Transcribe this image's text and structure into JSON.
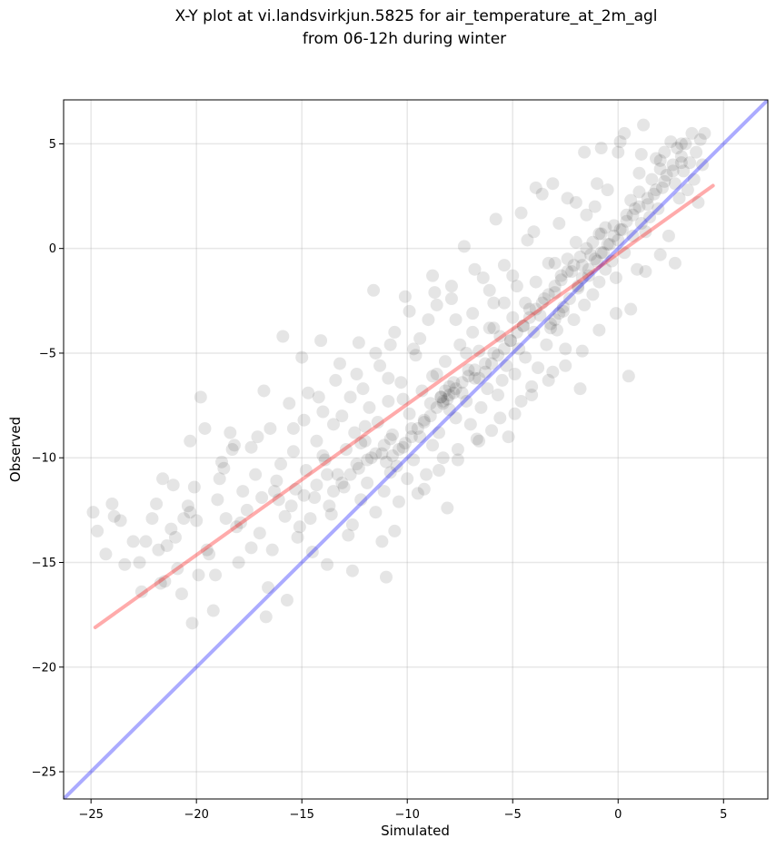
{
  "chart_data": {
    "type": "scatter",
    "title": "X-Y plot at vi.landsvirkjun.5825 for air_temperature_at_2m_agl",
    "subtitle": "from 06-12h during winter",
    "xlabel": "Simulated",
    "ylabel": "Observed",
    "xlim": [
      -26.3,
      7.1
    ],
    "ylim": [
      -26.3,
      7.1
    ],
    "xticks": [
      -25,
      -20,
      -15,
      -10,
      -5,
      0,
      5
    ],
    "yticks": [
      -25,
      -20,
      -15,
      -10,
      -5,
      0,
      5
    ],
    "xtick_labels": [
      "−25",
      "−20",
      "−15",
      "−10",
      "−5",
      "0",
      "5"
    ],
    "ytick_labels": [
      "−25",
      "−20",
      "−15",
      "−10",
      "−5",
      "0",
      "5"
    ],
    "grid": true,
    "point_color": "#000000",
    "point_alpha": 0.1,
    "regression_line": {
      "color": "#ff0000",
      "alpha": 0.33,
      "x": [
        -24.8,
        4.5
      ],
      "y": [
        -18.1,
        3.0
      ]
    },
    "identity_line": {
      "color": "#0000ff",
      "alpha": 0.33,
      "x": [
        -26.3,
        7.1
      ],
      "y": [
        -26.3,
        7.1
      ]
    },
    "points": [
      [
        -24.9,
        -12.6
      ],
      [
        -24.7,
        -13.5
      ],
      [
        -24.3,
        -14.6
      ],
      [
        -24.0,
        -12.2
      ],
      [
        -23.9,
        -12.8
      ],
      [
        -23.6,
        -13.0
      ],
      [
        -23.4,
        -15.1
      ],
      [
        -23.0,
        -14.0
      ],
      [
        -22.7,
        -15.0
      ],
      [
        -22.4,
        -14.0
      ],
      [
        -22.1,
        -12.9
      ],
      [
        -21.9,
        -12.2
      ],
      [
        -21.8,
        -14.4
      ],
      [
        -21.7,
        -16.0
      ],
      [
        -21.6,
        -11.0
      ],
      [
        -21.4,
        -14.2
      ],
      [
        -21.2,
        -13.4
      ],
      [
        -21.0,
        -13.8
      ],
      [
        -20.9,
        -15.3
      ],
      [
        -20.7,
        -16.5
      ],
      [
        -20.6,
        -12.9
      ],
      [
        -20.4,
        -12.3
      ],
      [
        -20.3,
        -9.2
      ],
      [
        -20.1,
        -11.4
      ],
      [
        -20.0,
        -13.0
      ],
      [
        -19.9,
        -15.6
      ],
      [
        -19.8,
        -7.1
      ],
      [
        -19.6,
        -8.6
      ],
      [
        -19.4,
        -14.6
      ],
      [
        -19.2,
        -17.3
      ],
      [
        -19.0,
        -12.0
      ],
      [
        -18.9,
        -11.0
      ],
      [
        -18.8,
        -10.2
      ],
      [
        -18.6,
        -12.9
      ],
      [
        -18.4,
        -8.8
      ],
      [
        -18.3,
        -9.6
      ],
      [
        -18.1,
        -13.3
      ],
      [
        -18.0,
        -15.0
      ],
      [
        -17.8,
        -11.6
      ],
      [
        -17.6,
        -12.5
      ],
      [
        -17.4,
        -9.5
      ],
      [
        -17.2,
        -10.8
      ],
      [
        -17.0,
        -13.6
      ],
      [
        -16.8,
        -6.8
      ],
      [
        -16.7,
        -17.6
      ],
      [
        -16.5,
        -8.6
      ],
      [
        -16.4,
        -14.4
      ],
      [
        -16.2,
        -11.1
      ],
      [
        -16.0,
        -10.3
      ],
      [
        -15.9,
        -4.2
      ],
      [
        -15.8,
        -12.8
      ],
      [
        -15.6,
        -7.4
      ],
      [
        -15.4,
        -9.7
      ],
      [
        -15.3,
        -11.5
      ],
      [
        -15.1,
        -13.3
      ],
      [
        -15.0,
        -5.2
      ],
      [
        -14.9,
        -8.2
      ],
      [
        -14.8,
        -10.6
      ],
      [
        -14.7,
        -6.9
      ],
      [
        -14.5,
        -14.5
      ],
      [
        -14.4,
        -11.9
      ],
      [
        -14.3,
        -9.2
      ],
      [
        -14.1,
        -4.4
      ],
      [
        -14.0,
        -7.8
      ],
      [
        -13.9,
        -10.1
      ],
      [
        -13.7,
        -12.3
      ],
      [
        -13.5,
        -8.4
      ],
      [
        -13.4,
        -6.3
      ],
      [
        -13.3,
        -10.8
      ],
      [
        -13.2,
        -5.5
      ],
      [
        -13.0,
        -11.4
      ],
      [
        -12.9,
        -9.6
      ],
      [
        -12.8,
        -13.7
      ],
      [
        -12.7,
        -7.1
      ],
      [
        -12.6,
        -15.4
      ],
      [
        -12.5,
        -8.8
      ],
      [
        -12.4,
        -10.3
      ],
      [
        -12.3,
        -4.5
      ],
      [
        -12.2,
        -12.0
      ],
      [
        -12.1,
        -6.7
      ],
      [
        -12.0,
        -9.2
      ],
      [
        -11.9,
        -11.2
      ],
      [
        -11.8,
        -7.6
      ],
      [
        -11.7,
        -10.0
      ],
      [
        -11.6,
        -2.0
      ],
      [
        -11.5,
        -12.6
      ],
      [
        -11.4,
        -8.3
      ],
      [
        -11.3,
        -5.6
      ],
      [
        -11.2,
        -9.8
      ],
      [
        -11.1,
        -11.6
      ],
      [
        -11.0,
        -15.7
      ],
      [
        -10.9,
        -7.3
      ],
      [
        -10.8,
        -10.7
      ],
      [
        -10.7,
        -8.9
      ],
      [
        -10.6,
        -4.0
      ],
      [
        -10.5,
        -10.4
      ],
      [
        -10.4,
        -12.1
      ],
      [
        -10.3,
        -6.4
      ],
      [
        -10.2,
        -9.5
      ],
      [
        -10.1,
        -2.3
      ],
      [
        -10.0,
        -11.0
      ],
      [
        -9.9,
        -7.9
      ],
      [
        -9.8,
        -8.6
      ],
      [
        -9.7,
        -10.1
      ],
      [
        -9.6,
        -5.1
      ],
      [
        -9.5,
        -11.7
      ],
      [
        -9.4,
        -9.0
      ],
      [
        -9.3,
        -6.8
      ],
      [
        -9.2,
        -8.2
      ],
      [
        -9.1,
        -10.8
      ],
      [
        -9.0,
        -3.4
      ],
      [
        -8.9,
        -7.4
      ],
      [
        -8.8,
        -9.4
      ],
      [
        -8.7,
        -2.1
      ],
      [
        -8.6,
        -6.0
      ],
      [
        -8.5,
        -8.8
      ],
      [
        -8.4,
        -7.1
      ],
      [
        -8.3,
        -10.0
      ],
      [
        -8.2,
        -5.4
      ],
      [
        -8.1,
        -12.4
      ],
      [
        -8.0,
        -7.7
      ],
      [
        -7.9,
        -1.8
      ],
      [
        -7.8,
        -6.4
      ],
      [
        -7.7,
        -8.1
      ],
      [
        -7.6,
        -9.6
      ],
      [
        -7.5,
        -4.6
      ],
      [
        -7.4,
        -6.9
      ],
      [
        -7.3,
        0.1
      ],
      [
        -7.2,
        -7.3
      ],
      [
        -7.1,
        -5.8
      ],
      [
        -7.0,
        -8.4
      ],
      [
        -6.9,
        -3.1
      ],
      [
        -6.8,
        -6.2
      ],
      [
        -6.7,
        -9.1
      ],
      [
        -6.6,
        -4.9
      ],
      [
        -6.5,
        -7.6
      ],
      [
        -6.4,
        -1.4
      ],
      [
        -6.3,
        -5.5
      ],
      [
        -6.2,
        -6.7
      ],
      [
        -6.1,
        -3.8
      ],
      [
        -6.0,
        -8.7
      ],
      [
        -5.9,
        -5.0
      ],
      [
        -5.8,
        1.4
      ],
      [
        -5.7,
        -7.0
      ],
      [
        -5.6,
        -4.2
      ],
      [
        -5.5,
        -6.3
      ],
      [
        -5.4,
        -2.6
      ],
      [
        -5.3,
        -5.6
      ],
      [
        -5.2,
        -9.0
      ],
      [
        -5.1,
        -4.4
      ],
      [
        -5.0,
        -3.3
      ],
      [
        -4.9,
        -6.0
      ],
      [
        -4.8,
        -1.8
      ],
      [
        -4.7,
        -4.8
      ],
      [
        -4.6,
        -7.3
      ],
      [
        -4.5,
        -3.7
      ],
      [
        -4.4,
        -5.2
      ],
      [
        -4.3,
        0.4
      ],
      [
        -4.2,
        -2.9
      ],
      [
        -4.1,
        -6.6
      ],
      [
        -4.0,
        -4.0
      ],
      [
        -3.9,
        -1.6
      ],
      [
        -3.8,
        -5.7
      ],
      [
        -3.7,
        -3.2
      ],
      [
        -3.6,
        2.6
      ],
      [
        -3.5,
        -2.4
      ],
      [
        -3.4,
        -4.6
      ],
      [
        -3.3,
        -0.7
      ],
      [
        -3.2,
        -3.6
      ],
      [
        -3.1,
        -5.9
      ],
      [
        -3.0,
        -2.1
      ],
      [
        -2.9,
        -3.9
      ],
      [
        -2.8,
        1.2
      ],
      [
        -2.7,
        -1.3
      ],
      [
        -2.6,
        -3.0
      ],
      [
        -2.5,
        -4.8
      ],
      [
        -2.4,
        -0.5
      ],
      [
        -2.3,
        -2.4
      ],
      [
        -2.2,
        -1.1
      ],
      [
        -2.1,
        -3.4
      ],
      [
        -2.0,
        0.3
      ],
      [
        -1.9,
        -1.8
      ],
      [
        -1.8,
        -6.7
      ],
      [
        -1.7,
        -0.8
      ],
      [
        -1.6,
        -2.7
      ],
      [
        -1.5,
        1.6
      ],
      [
        -1.4,
        -1.3
      ],
      [
        -1.3,
        -0.3
      ],
      [
        -1.2,
        -2.2
      ],
      [
        -1.1,
        2.0
      ],
      [
        -1.0,
        -0.6
      ],
      [
        -0.9,
        -1.6
      ],
      [
        -0.8,
        0.7
      ],
      [
        -0.7,
        -0.2
      ],
      [
        -0.6,
        -1.0
      ],
      [
        -0.5,
        2.8
      ],
      [
        -0.4,
        0.2
      ],
      [
        -0.3,
        -0.6
      ],
      [
        -0.2,
        1.1
      ],
      [
        -0.1,
        -1.4
      ],
      [
        0.0,
        0.4
      ],
      [
        0.1,
        5.1
      ],
      [
        0.2,
        0.9
      ],
      [
        0.3,
        -0.2
      ],
      [
        0.4,
        1.6
      ],
      [
        0.5,
        -6.1
      ],
      [
        0.6,
        2.3
      ],
      [
        0.7,
        0.6
      ],
      [
        0.8,
        1.9
      ],
      [
        0.9,
        -1.0
      ],
      [
        1.0,
        2.7
      ],
      [
        1.1,
        1.2
      ],
      [
        1.2,
        5.9
      ],
      [
        1.3,
        0.8
      ],
      [
        1.4,
        2.1
      ],
      [
        1.5,
        1.5
      ],
      [
        1.6,
        3.3
      ],
      [
        1.7,
        2.6
      ],
      [
        1.8,
        4.3
      ],
      [
        1.9,
        1.9
      ],
      [
        2.0,
        3.8
      ],
      [
        2.1,
        2.9
      ],
      [
        2.2,
        4.6
      ],
      [
        2.3,
        3.5
      ],
      [
        2.4,
        0.6
      ],
      [
        2.5,
        5.1
      ],
      [
        2.6,
        4.0
      ],
      [
        2.7,
        3.1
      ],
      [
        2.8,
        4.8
      ],
      [
        2.9,
        2.4
      ],
      [
        3.0,
        4.4
      ],
      [
        3.1,
        3.7
      ],
      [
        3.2,
        5.0
      ],
      [
        3.3,
        2.8
      ],
      [
        3.4,
        4.1
      ],
      [
        3.5,
        5.5
      ],
      [
        3.6,
        3.3
      ],
      [
        3.7,
        4.6
      ],
      [
        3.8,
        2.2
      ],
      [
        3.9,
        5.2
      ],
      [
        4.0,
        4.0
      ],
      [
        4.1,
        5.5
      ],
      [
        -20.2,
        -17.9
      ],
      [
        -22.6,
        -16.4
      ],
      [
        -19.1,
        -15.6
      ],
      [
        -17.4,
        -14.3
      ],
      [
        -16.6,
        -16.2
      ],
      [
        -15.7,
        -16.8
      ],
      [
        -21.1,
        -11.3
      ],
      [
        -18.7,
        -10.5
      ],
      [
        -16.1,
        -12.0
      ],
      [
        -14.6,
        -12.9
      ],
      [
        -13.8,
        -15.1
      ],
      [
        -12.6,
        -13.2
      ],
      [
        -11.2,
        -14.0
      ],
      [
        -10.6,
        -13.5
      ],
      [
        -17.1,
        -9.0
      ],
      [
        -15.4,
        -8.6
      ],
      [
        -14.2,
        -7.1
      ],
      [
        -13.1,
        -8.0
      ],
      [
        -12.4,
        -6.0
      ],
      [
        -11.5,
        -5.0
      ],
      [
        -10.8,
        -4.6
      ],
      [
        -9.9,
        -3.0
      ],
      [
        -9.4,
        -4.3
      ],
      [
        -8.6,
        -2.7
      ],
      [
        -7.7,
        -3.4
      ],
      [
        -6.8,
        -1.0
      ],
      [
        -6.1,
        -2.0
      ],
      [
        -5.4,
        -0.8
      ],
      [
        -4.6,
        1.7
      ],
      [
        -3.9,
        2.9
      ],
      [
        -3.1,
        3.1
      ],
      [
        -2.4,
        2.4
      ],
      [
        -1.6,
        4.6
      ],
      [
        -0.8,
        4.8
      ],
      [
        0.3,
        5.5
      ],
      [
        1.1,
        4.5
      ],
      [
        -9.2,
        -11.5
      ],
      [
        -8.5,
        -10.6
      ],
      [
        -7.6,
        -10.1
      ],
      [
        -6.6,
        -9.2
      ],
      [
        -5.6,
        -8.1
      ],
      [
        -4.9,
        -7.9
      ],
      [
        -4.1,
        -7.0
      ],
      [
        -3.3,
        -6.3
      ],
      [
        -2.5,
        -5.6
      ],
      [
        -1.7,
        -4.9
      ],
      [
        -0.9,
        -3.9
      ],
      [
        -0.1,
        -3.1
      ],
      [
        0.6,
        -2.9
      ],
      [
        1.3,
        -1.1
      ],
      [
        2.0,
        -0.3
      ],
      [
        2.7,
        -0.7
      ],
      [
        -6.6,
        -6.2
      ],
      [
        -6.3,
        -5.9
      ],
      [
        -6.0,
        -5.5
      ],
      [
        -5.7,
        -5.1
      ],
      [
        -5.4,
        -4.8
      ],
      [
        -5.1,
        -4.4
      ],
      [
        -4.8,
        -4.0
      ],
      [
        -4.5,
        -3.7
      ],
      [
        -4.2,
        -3.3
      ],
      [
        -3.9,
        -2.9
      ],
      [
        -3.6,
        -2.6
      ],
      [
        -3.3,
        -2.2
      ],
      [
        -3.0,
        -1.8
      ],
      [
        -2.7,
        -1.5
      ],
      [
        -2.4,
        -1.1
      ],
      [
        -2.1,
        -0.8
      ],
      [
        -1.8,
        -0.4
      ],
      [
        -1.5,
        0.0
      ],
      [
        -1.2,
        0.3
      ],
      [
        -0.9,
        0.7
      ],
      [
        -0.6,
        1.0
      ],
      [
        -11.0,
        -10.2
      ],
      [
        -10.7,
        -9.9
      ],
      [
        -10.4,
        -9.6
      ],
      [
        -10.1,
        -9.3
      ],
      [
        -9.8,
        -9.0
      ],
      [
        -9.5,
        -8.6
      ],
      [
        -9.2,
        -8.3
      ],
      [
        -8.9,
        -8.0
      ],
      [
        -8.6,
        -7.6
      ],
      [
        -8.3,
        -7.3
      ],
      [
        -8.0,
        -7.0
      ],
      [
        -7.7,
        -6.7
      ],
      [
        -7.4,
        -6.4
      ],
      [
        -7.1,
        -6.1
      ],
      [
        -6.8,
        -5.8
      ],
      [
        -13.5,
        -11.6
      ],
      [
        -13.1,
        -11.2
      ],
      [
        -12.7,
        -10.8
      ],
      [
        -12.3,
        -10.5
      ],
      [
        -11.9,
        -10.1
      ],
      [
        -11.5,
        -9.8
      ],
      [
        -11.1,
        -9.4
      ],
      [
        -10.8,
        -9.1
      ],
      [
        -15.5,
        -12.3
      ],
      [
        -14.9,
        -11.8
      ],
      [
        -14.3,
        -11.3
      ],
      [
        -13.8,
        -10.8
      ],
      [
        -8.4,
        -7.1
      ],
      [
        -8.2,
        -6.8
      ],
      [
        -8.0,
        -6.6
      ],
      [
        -7.8,
        -6.9
      ],
      [
        -8.3,
        -7.4
      ],
      [
        -8.1,
        -7.2
      ],
      [
        -3.2,
        -3.8
      ],
      [
        -3.0,
        -3.4
      ],
      [
        -2.8,
        -3.1
      ],
      [
        -2.6,
        -2.8
      ],
      [
        -1.9,
        -1.9
      ],
      [
        -1.7,
        -1.4
      ],
      [
        -1.4,
        -1.0
      ],
      [
        -1.1,
        -0.5
      ],
      [
        -0.8,
        -0.2
      ],
      [
        -0.5,
        0.2
      ],
      [
        -0.2,
        0.6
      ],
      [
        0.1,
        0.9
      ],
      [
        0.4,
        1.3
      ],
      [
        0.7,
        1.6
      ],
      [
        1.0,
        2.0
      ],
      [
        1.4,
        2.4
      ],
      [
        1.8,
        2.8
      ],
      [
        2.2,
        3.2
      ],
      [
        2.6,
        3.7
      ],
      [
        3.0,
        4.1
      ],
      [
        -19.5,
        -14.4
      ],
      [
        -17.9,
        -13.1
      ],
      [
        -16.3,
        -11.6
      ],
      [
        -14.0,
        -9.9
      ],
      [
        -12.0,
        -8.5
      ],
      [
        -10.2,
        -7.2
      ],
      [
        -8.8,
        -6.1
      ],
      [
        -7.2,
        -5.0
      ],
      [
        -5.9,
        -3.8
      ],
      [
        -4.4,
        -2.6
      ],
      [
        -21.5,
        -15.9
      ],
      [
        -20.3,
        -12.6
      ],
      [
        -18.2,
        -9.4
      ],
      [
        -16.9,
        -11.9
      ],
      [
        -15.2,
        -13.8
      ],
      [
        -13.6,
        -12.7
      ],
      [
        -12.2,
        -9.3
      ],
      [
        -10.9,
        -6.2
      ],
      [
        -9.7,
        -4.8
      ],
      [
        -8.8,
        -1.3
      ],
      [
        -7.9,
        -2.4
      ],
      [
        -6.9,
        -4.0
      ],
      [
        -5.9,
        -2.6
      ],
      [
        -5.0,
        -1.3
      ],
      [
        -4.0,
        0.8
      ],
      [
        -3.0,
        -0.7
      ],
      [
        -2.0,
        2.2
      ],
      [
        -1.0,
        3.1
      ],
      [
        0.0,
        4.6
      ],
      [
        1.0,
        3.6
      ],
      [
        2.0,
        4.2
      ],
      [
        3.0,
        5.0
      ]
    ]
  }
}
